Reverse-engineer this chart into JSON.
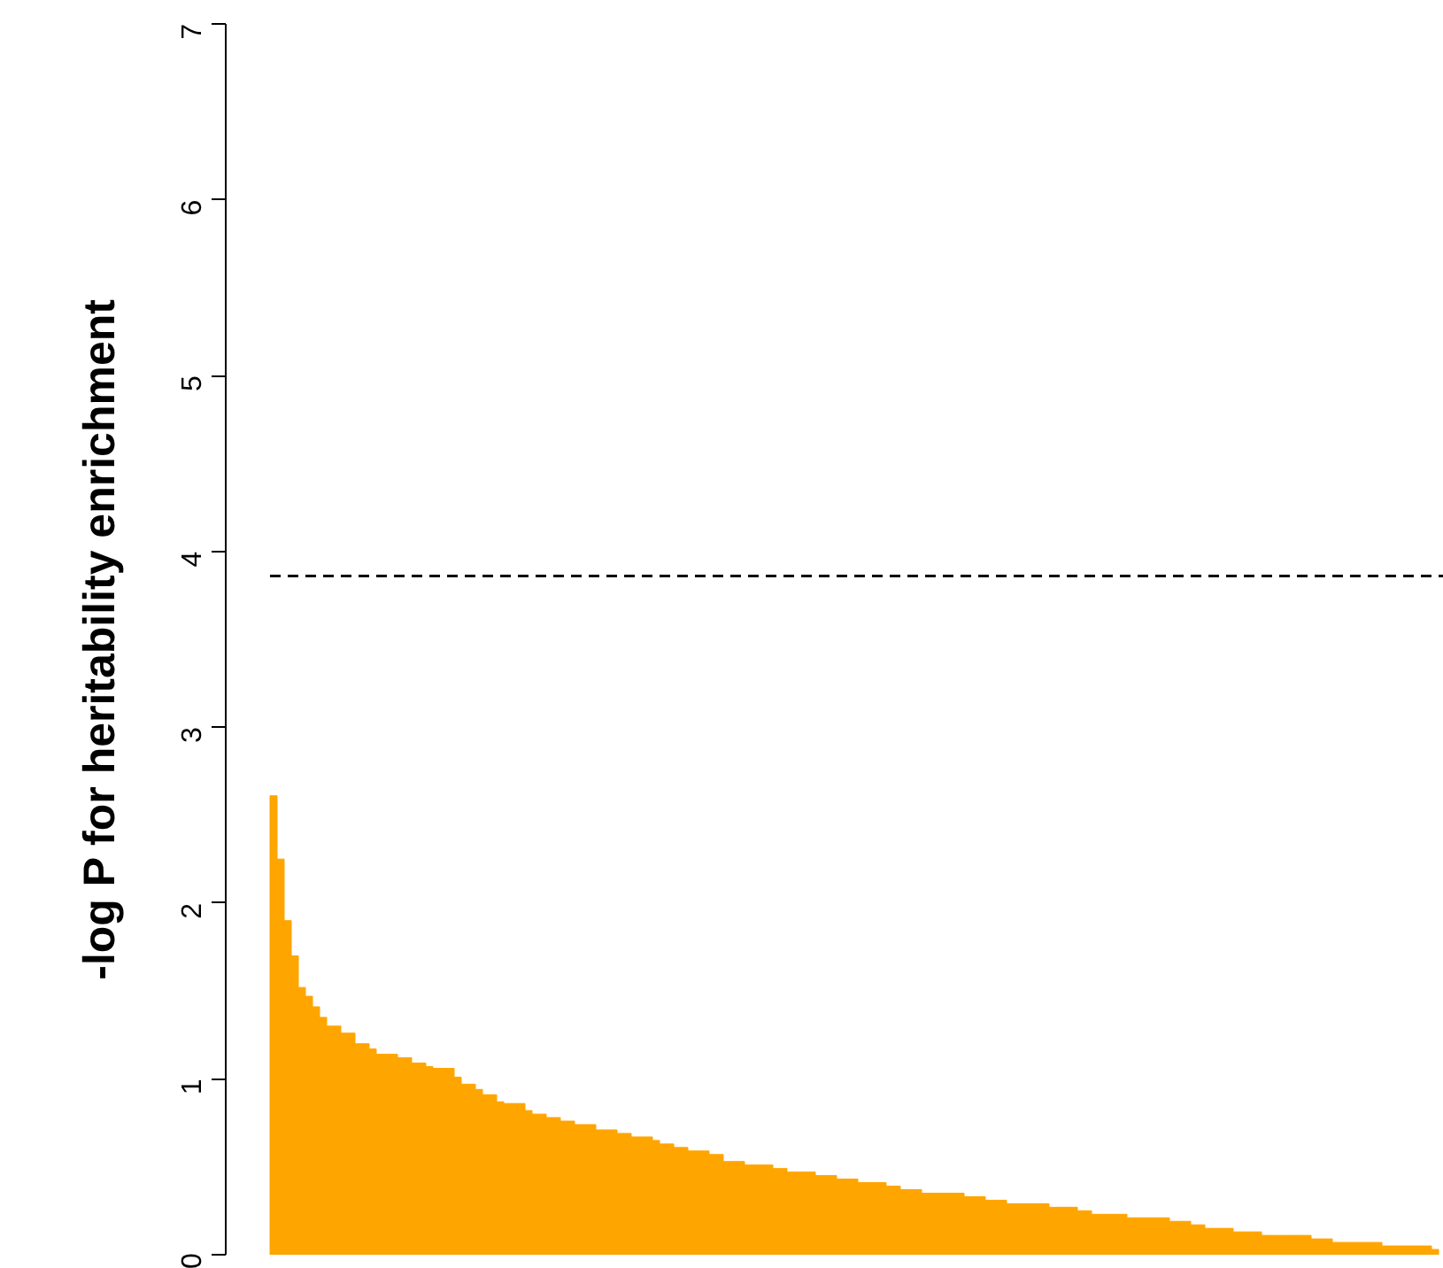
{
  "chart_data": {
    "type": "bar",
    "ylabel": "-log P for heritability enrichment",
    "color": "#ffa500",
    "categories": [
      null,
      null,
      null,
      null,
      null,
      null,
      null,
      null,
      null,
      null,
      null,
      null,
      null,
      null,
      null,
      null,
      null,
      null,
      null,
      null,
      null,
      null,
      null,
      null,
      null,
      null,
      null,
      null,
      null,
      null,
      null,
      null,
      null,
      null,
      null,
      null,
      null,
      null,
      null,
      null,
      null,
      null,
      null,
      null,
      null,
      null,
      null,
      null,
      null,
      null,
      null,
      null,
      null,
      null,
      null,
      null,
      null,
      null,
      null,
      null,
      null,
      null,
      null,
      null,
      null,
      null,
      null,
      null,
      null,
      null,
      null,
      null,
      null,
      null,
      null,
      null,
      null,
      null,
      null,
      null,
      null,
      null,
      null,
      null,
      null,
      null,
      null,
      null,
      null,
      null,
      null,
      null,
      null,
      null,
      null,
      null,
      null,
      null,
      null,
      null,
      null,
      null,
      null,
      null,
      null,
      null,
      null,
      null,
      null,
      null,
      null,
      null,
      null,
      null,
      null,
      null,
      null,
      null,
      null,
      null,
      null,
      null,
      null,
      null,
      null,
      null,
      null,
      null,
      null,
      null,
      null,
      null,
      null,
      null,
      null,
      null,
      null,
      null,
      null,
      null,
      null,
      null,
      null,
      null,
      null,
      null,
      null,
      null,
      null,
      null,
      null,
      null,
      null,
      null,
      null,
      null,
      null,
      null,
      null,
      null,
      null,
      null,
      null,
      null,
      null
    ],
    "values": [
      2.61,
      2.25,
      1.9,
      1.7,
      1.52,
      1.47,
      1.41,
      1.35,
      1.3,
      1.3,
      1.26,
      1.26,
      1.2,
      1.2,
      1.17,
      1.14,
      1.14,
      1.14,
      1.12,
      1.12,
      1.09,
      1.09,
      1.07,
      1.06,
      1.06,
      1.06,
      1.01,
      0.97,
      0.97,
      0.94,
      0.91,
      0.91,
      0.87,
      0.86,
      0.86,
      0.86,
      0.82,
      0.8,
      0.8,
      0.78,
      0.78,
      0.76,
      0.76,
      0.74,
      0.74,
      0.74,
      0.71,
      0.71,
      0.71,
      0.69,
      0.69,
      0.67,
      0.67,
      0.67,
      0.65,
      0.63,
      0.63,
      0.61,
      0.61,
      0.59,
      0.59,
      0.59,
      0.57,
      0.57,
      0.53,
      0.53,
      0.53,
      0.51,
      0.51,
      0.51,
      0.51,
      0.49,
      0.49,
      0.47,
      0.47,
      0.47,
      0.47,
      0.45,
      0.45,
      0.45,
      0.43,
      0.43,
      0.43,
      0.41,
      0.41,
      0.41,
      0.41,
      0.39,
      0.39,
      0.37,
      0.37,
      0.37,
      0.35,
      0.35,
      0.35,
      0.35,
      0.35,
      0.35,
      0.33,
      0.33,
      0.33,
      0.31,
      0.31,
      0.31,
      0.29,
      0.29,
      0.29,
      0.29,
      0.29,
      0.29,
      0.27,
      0.27,
      0.27,
      0.27,
      0.25,
      0.25,
      0.23,
      0.23,
      0.23,
      0.23,
      0.23,
      0.21,
      0.21,
      0.21,
      0.21,
      0.21,
      0.21,
      0.19,
      0.19,
      0.19,
      0.17,
      0.17,
      0.15,
      0.15,
      0.15,
      0.15,
      0.13,
      0.13,
      0.13,
      0.13,
      0.11,
      0.11,
      0.11,
      0.11,
      0.11,
      0.11,
      0.11,
      0.09,
      0.09,
      0.09,
      0.07,
      0.07,
      0.07,
      0.07,
      0.07,
      0.07,
      0.07,
      0.05,
      0.05,
      0.05,
      0.05,
      0.05,
      0.05,
      0.05,
      0.03
    ],
    "ylim": [
      0,
      7
    ],
    "yticks": [
      0,
      1,
      2,
      3,
      4,
      5,
      6,
      7
    ],
    "tick_labels": "y",
    "grid": false,
    "ref_lines": [
      {
        "axis": "y",
        "value": 3.86,
        "line_style": "dashed",
        "color": "#000000"
      }
    ]
  }
}
